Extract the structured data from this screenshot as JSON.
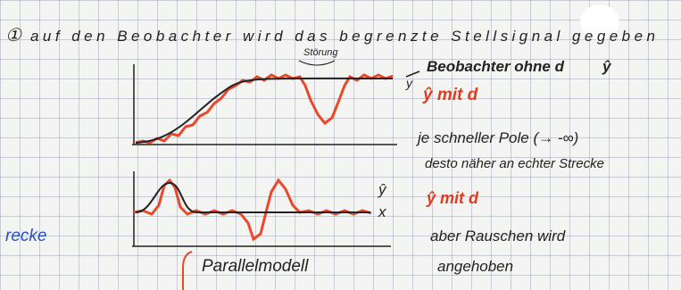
{
  "header": {
    "number": "①",
    "text": "auf den Beobachter wird das begrenzte Stellsignal gegeben"
  },
  "plot_top": {
    "annotation": "Störung",
    "label_y": "y",
    "label_observer": "Beobachter ohne d",
    "label_observer_hat": "ŷ",
    "label_with_d": "ŷ mit d"
  },
  "notes": [
    "je schneller Pole (→ -∞)",
    "desto näher an echter Strecke",
    "ŷ mit d",
    "aber Rauschen wird",
    "angehoben"
  ],
  "plot_bottom": {
    "label_yhat": "ŷ",
    "label_x": "x",
    "caption": "Parallelmodell"
  },
  "margin": {
    "left_text": "recke"
  }
}
